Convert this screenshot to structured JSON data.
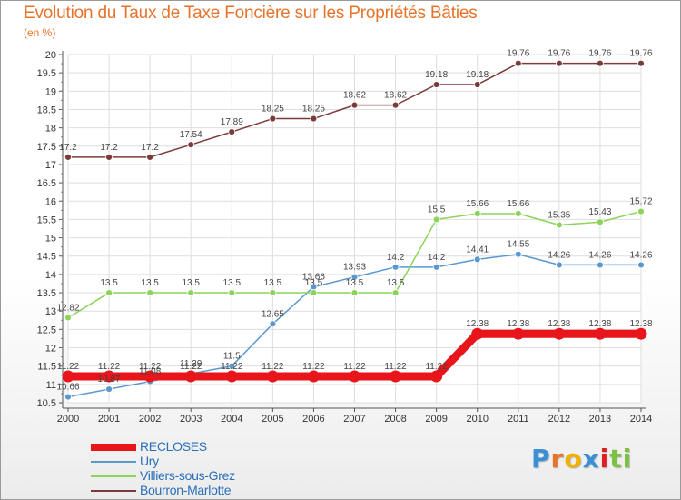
{
  "title": "Evolution du Taux de Taxe Foncière sur les Propriétés Bâties",
  "unit_label": "(en %)",
  "logo": {
    "letters": [
      {
        "ch": "P",
        "color": "#3b8fd6"
      },
      {
        "ch": "r",
        "color": "#e8732a"
      },
      {
        "ch": "o",
        "color": "#f2b000"
      },
      {
        "ch": "x",
        "color": "#3b8fd6"
      },
      {
        "ch": "i",
        "color": "#e02020"
      },
      {
        "ch": "t",
        "color": "#7cc242"
      },
      {
        "ch": "i",
        "color": "#7cc242"
      }
    ]
  },
  "chart_data": {
    "type": "line",
    "title": "Evolution du Taux de Taxe Foncière sur les Propriétés Bâties",
    "ylabel": "(en %)",
    "xlabel": "",
    "ylim": [
      10.5,
      20
    ],
    "yticks": [
      10.5,
      11,
      11.5,
      12,
      12.5,
      13,
      13.5,
      14,
      14.5,
      15,
      15.5,
      16,
      16.5,
      17,
      17.5,
      18,
      18.5,
      19,
      19.5,
      20
    ],
    "grid": true,
    "legend_position": "bottom-left",
    "x": [
      "2000",
      "2001",
      "2002",
      "2003",
      "2004",
      "2005",
      "2006",
      "2007",
      "2008",
      "2009",
      "2010",
      "2011",
      "2012",
      "2013",
      "2014"
    ],
    "series": [
      {
        "name": "RECLOSES",
        "color": "#e8161a",
        "emphasis": true,
        "values": [
          11.22,
          11.22,
          11.22,
          11.22,
          11.22,
          11.22,
          11.22,
          11.22,
          11.22,
          11.22,
          12.38,
          12.38,
          12.38,
          12.38,
          12.38
        ],
        "labels": [
          "11.22",
          "11.22",
          "11.22",
          "11.22",
          "11.22",
          "11.22",
          "11.22",
          "11.22",
          "11.22",
          "11.22",
          "12.38",
          "12.38",
          "12.38",
          "12.38",
          "12.38"
        ]
      },
      {
        "name": "Ury",
        "color": "#5b98cf",
        "emphasis": false,
        "values": [
          10.66,
          10.87,
          11.08,
          11.29,
          11.5,
          12.65,
          13.66,
          13.93,
          14.2,
          14.2,
          14.41,
          14.55,
          14.26,
          14.26,
          14.26
        ],
        "labels": [
          "10.66",
          "10.87",
          "11.08",
          "11.29",
          "11.5",
          "12.65",
          "13.66",
          "13.93",
          "14.2",
          "14.2",
          "14.41",
          "14.55",
          "14.26",
          "14.26",
          "14.26"
        ]
      },
      {
        "name": "Villiers-sous-Grez",
        "color": "#8cd35a",
        "emphasis": false,
        "values": [
          12.82,
          13.5,
          13.5,
          13.5,
          13.5,
          13.5,
          13.5,
          13.5,
          13.5,
          15.5,
          15.66,
          15.66,
          15.35,
          15.43,
          15.72
        ],
        "labels": [
          "12.82",
          "13.5",
          "13.5",
          "13.5",
          "13.5",
          "13.5",
          "13.5",
          "13.5",
          "13.5",
          "15.5",
          "15.66",
          "15.66",
          "15.35",
          "15.43",
          "15.72"
        ]
      },
      {
        "name": "Bourron-Marlotte",
        "color": "#7a3b3b",
        "emphasis": false,
        "values": [
          17.2,
          17.2,
          17.2,
          17.54,
          17.89,
          18.25,
          18.25,
          18.62,
          18.62,
          19.18,
          19.18,
          19.76,
          19.76,
          19.76,
          19.76
        ],
        "labels": [
          "17.2",
          "17.2",
          "17.2",
          "17.54",
          "17.89",
          "18.25",
          "18.25",
          "18.62",
          "18.62",
          "19.18",
          "19.18",
          "19.76",
          "19.76",
          "19.76",
          "19.76"
        ]
      }
    ]
  }
}
